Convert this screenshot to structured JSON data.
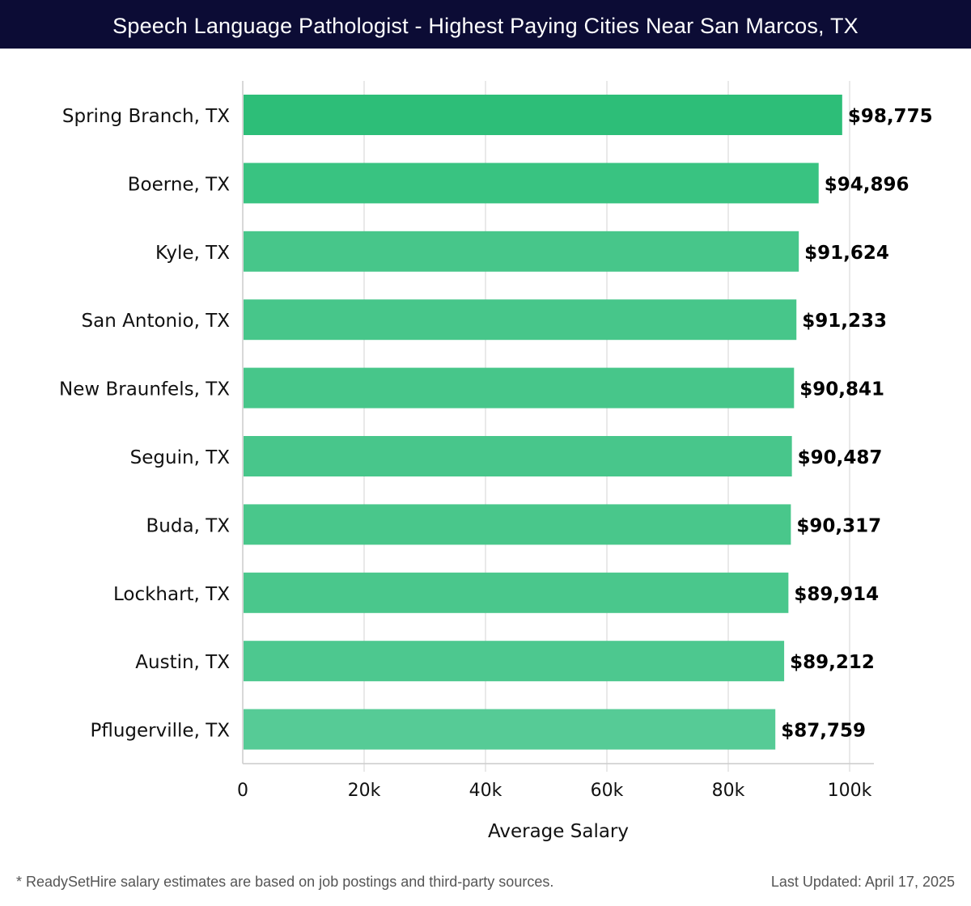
{
  "title": "Speech Language Pathologist - Highest Paying Cities Near San Marcos, TX",
  "footnote": "* ReadySetHire salary estimates are based on job postings and third-party sources.",
  "last_updated": "Last Updated: April 17, 2025",
  "chart_data": {
    "type": "bar",
    "orientation": "horizontal",
    "title": "Speech Language Pathologist - Highest Paying Cities Near San Marcos, TX",
    "xlabel": "Average Salary",
    "ylabel": "",
    "xlim": [
      0,
      104000
    ],
    "grid": true,
    "xticks": [
      0,
      20000,
      40000,
      60000,
      80000,
      100000
    ],
    "xtick_labels": [
      "0",
      "20k",
      "40k",
      "60k",
      "80k",
      "100k"
    ],
    "categories": [
      "Spring Branch, TX",
      "Boerne, TX",
      "Kyle, TX",
      "San Antonio, TX",
      "New Braunfels, TX",
      "Seguin, TX",
      "Buda, TX",
      "Lockhart, TX",
      "Austin, TX",
      "Pflugerville, TX"
    ],
    "values": [
      98775,
      94896,
      91624,
      91233,
      90841,
      90487,
      90317,
      89914,
      89212,
      87759
    ],
    "data_labels": [
      "$98,775",
      "$94,896",
      "$91,624",
      "$91,233",
      "$90,841",
      "$90,487",
      "$90,317",
      "$89,914",
      "$89,212",
      "$87,759"
    ],
    "colors": [
      "#2dbe78",
      "#39c381",
      "#47c68a",
      "#47c68a",
      "#47c68a",
      "#48c68b",
      "#49c78b",
      "#4ac78c",
      "#4dc88f",
      "#56cb96"
    ]
  }
}
